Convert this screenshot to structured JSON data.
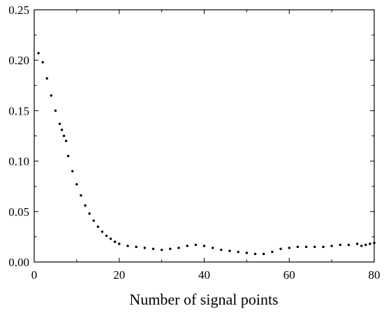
{
  "chart_data": {
    "type": "scatter",
    "title": "",
    "xlabel": "Number of signal points",
    "ylabel": "",
    "xlim": [
      0,
      80
    ],
    "ylim": [
      0,
      0.25
    ],
    "xticks": [
      0,
      20,
      40,
      60,
      80
    ],
    "xtick_labels": [
      "0",
      "20",
      "40",
      "60",
      "80"
    ],
    "yticks": [
      0,
      0.05,
      0.1,
      0.15,
      0.2,
      0.25
    ],
    "ytick_labels": [
      "0.00",
      "0.05",
      "0.10",
      "0.15",
      "0.20",
      "0.25"
    ],
    "grid": false,
    "marker_color": "#000000",
    "series": [
      {
        "x": [
          1,
          2,
          3,
          4,
          5,
          6,
          6.5,
          7,
          7.5,
          8,
          9,
          10,
          11,
          12,
          13,
          14,
          15,
          16,
          17,
          18,
          19,
          20,
          22,
          24,
          26,
          28,
          30,
          32,
          34,
          36,
          38,
          40,
          42,
          44,
          46,
          48,
          50,
          52,
          54,
          56,
          58,
          60,
          62,
          64,
          66,
          68,
          70,
          72,
          74,
          76,
          77,
          78,
          79,
          80
        ],
        "y": [
          0.207,
          0.198,
          0.182,
          0.165,
          0.15,
          0.137,
          0.131,
          0.125,
          0.12,
          0.105,
          0.09,
          0.077,
          0.066,
          0.056,
          0.048,
          0.041,
          0.035,
          0.03,
          0.026,
          0.023,
          0.02,
          0.018,
          0.016,
          0.015,
          0.014,
          0.013,
          0.012,
          0.013,
          0.014,
          0.016,
          0.017,
          0.016,
          0.014,
          0.012,
          0.011,
          0.01,
          0.009,
          0.008,
          0.008,
          0.01,
          0.013,
          0.014,
          0.015,
          0.015,
          0.015,
          0.015,
          0.016,
          0.017,
          0.017,
          0.018,
          0.016,
          0.017,
          0.018,
          0.019
        ]
      }
    ]
  }
}
